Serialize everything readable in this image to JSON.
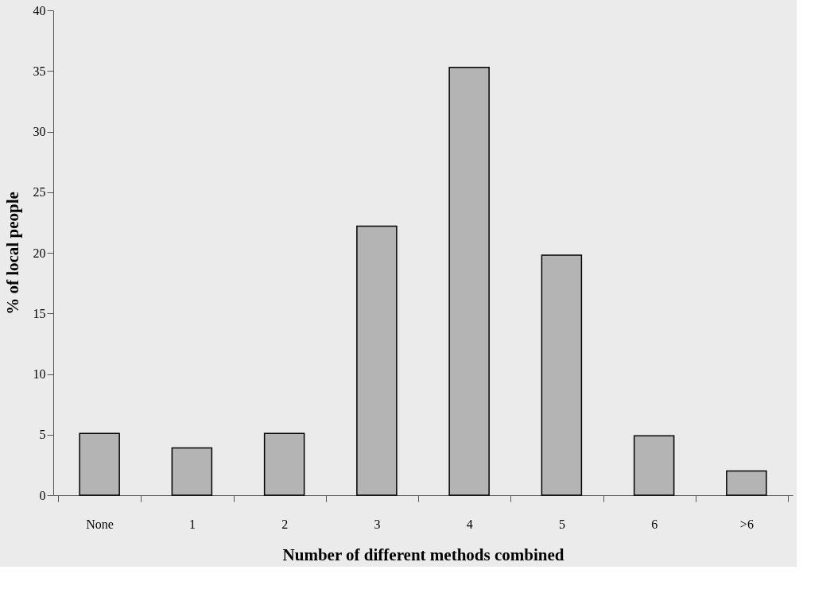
{
  "chart_data": {
    "type": "bar",
    "xlabel": "Number of different methods combined",
    "ylabel": "% of local people",
    "categories": [
      "None",
      "1",
      "2",
      "3",
      "4",
      "5",
      "6",
      ">6"
    ],
    "values": [
      5.1,
      3.9,
      5.1,
      22.2,
      35.3,
      19.8,
      4.9,
      2.0
    ],
    "color": "#b4b4b4",
    "ylim": [
      0,
      40
    ],
    "yticks": [
      0,
      5,
      10,
      15,
      20,
      25,
      30,
      35,
      40
    ],
    "grid": false
  }
}
